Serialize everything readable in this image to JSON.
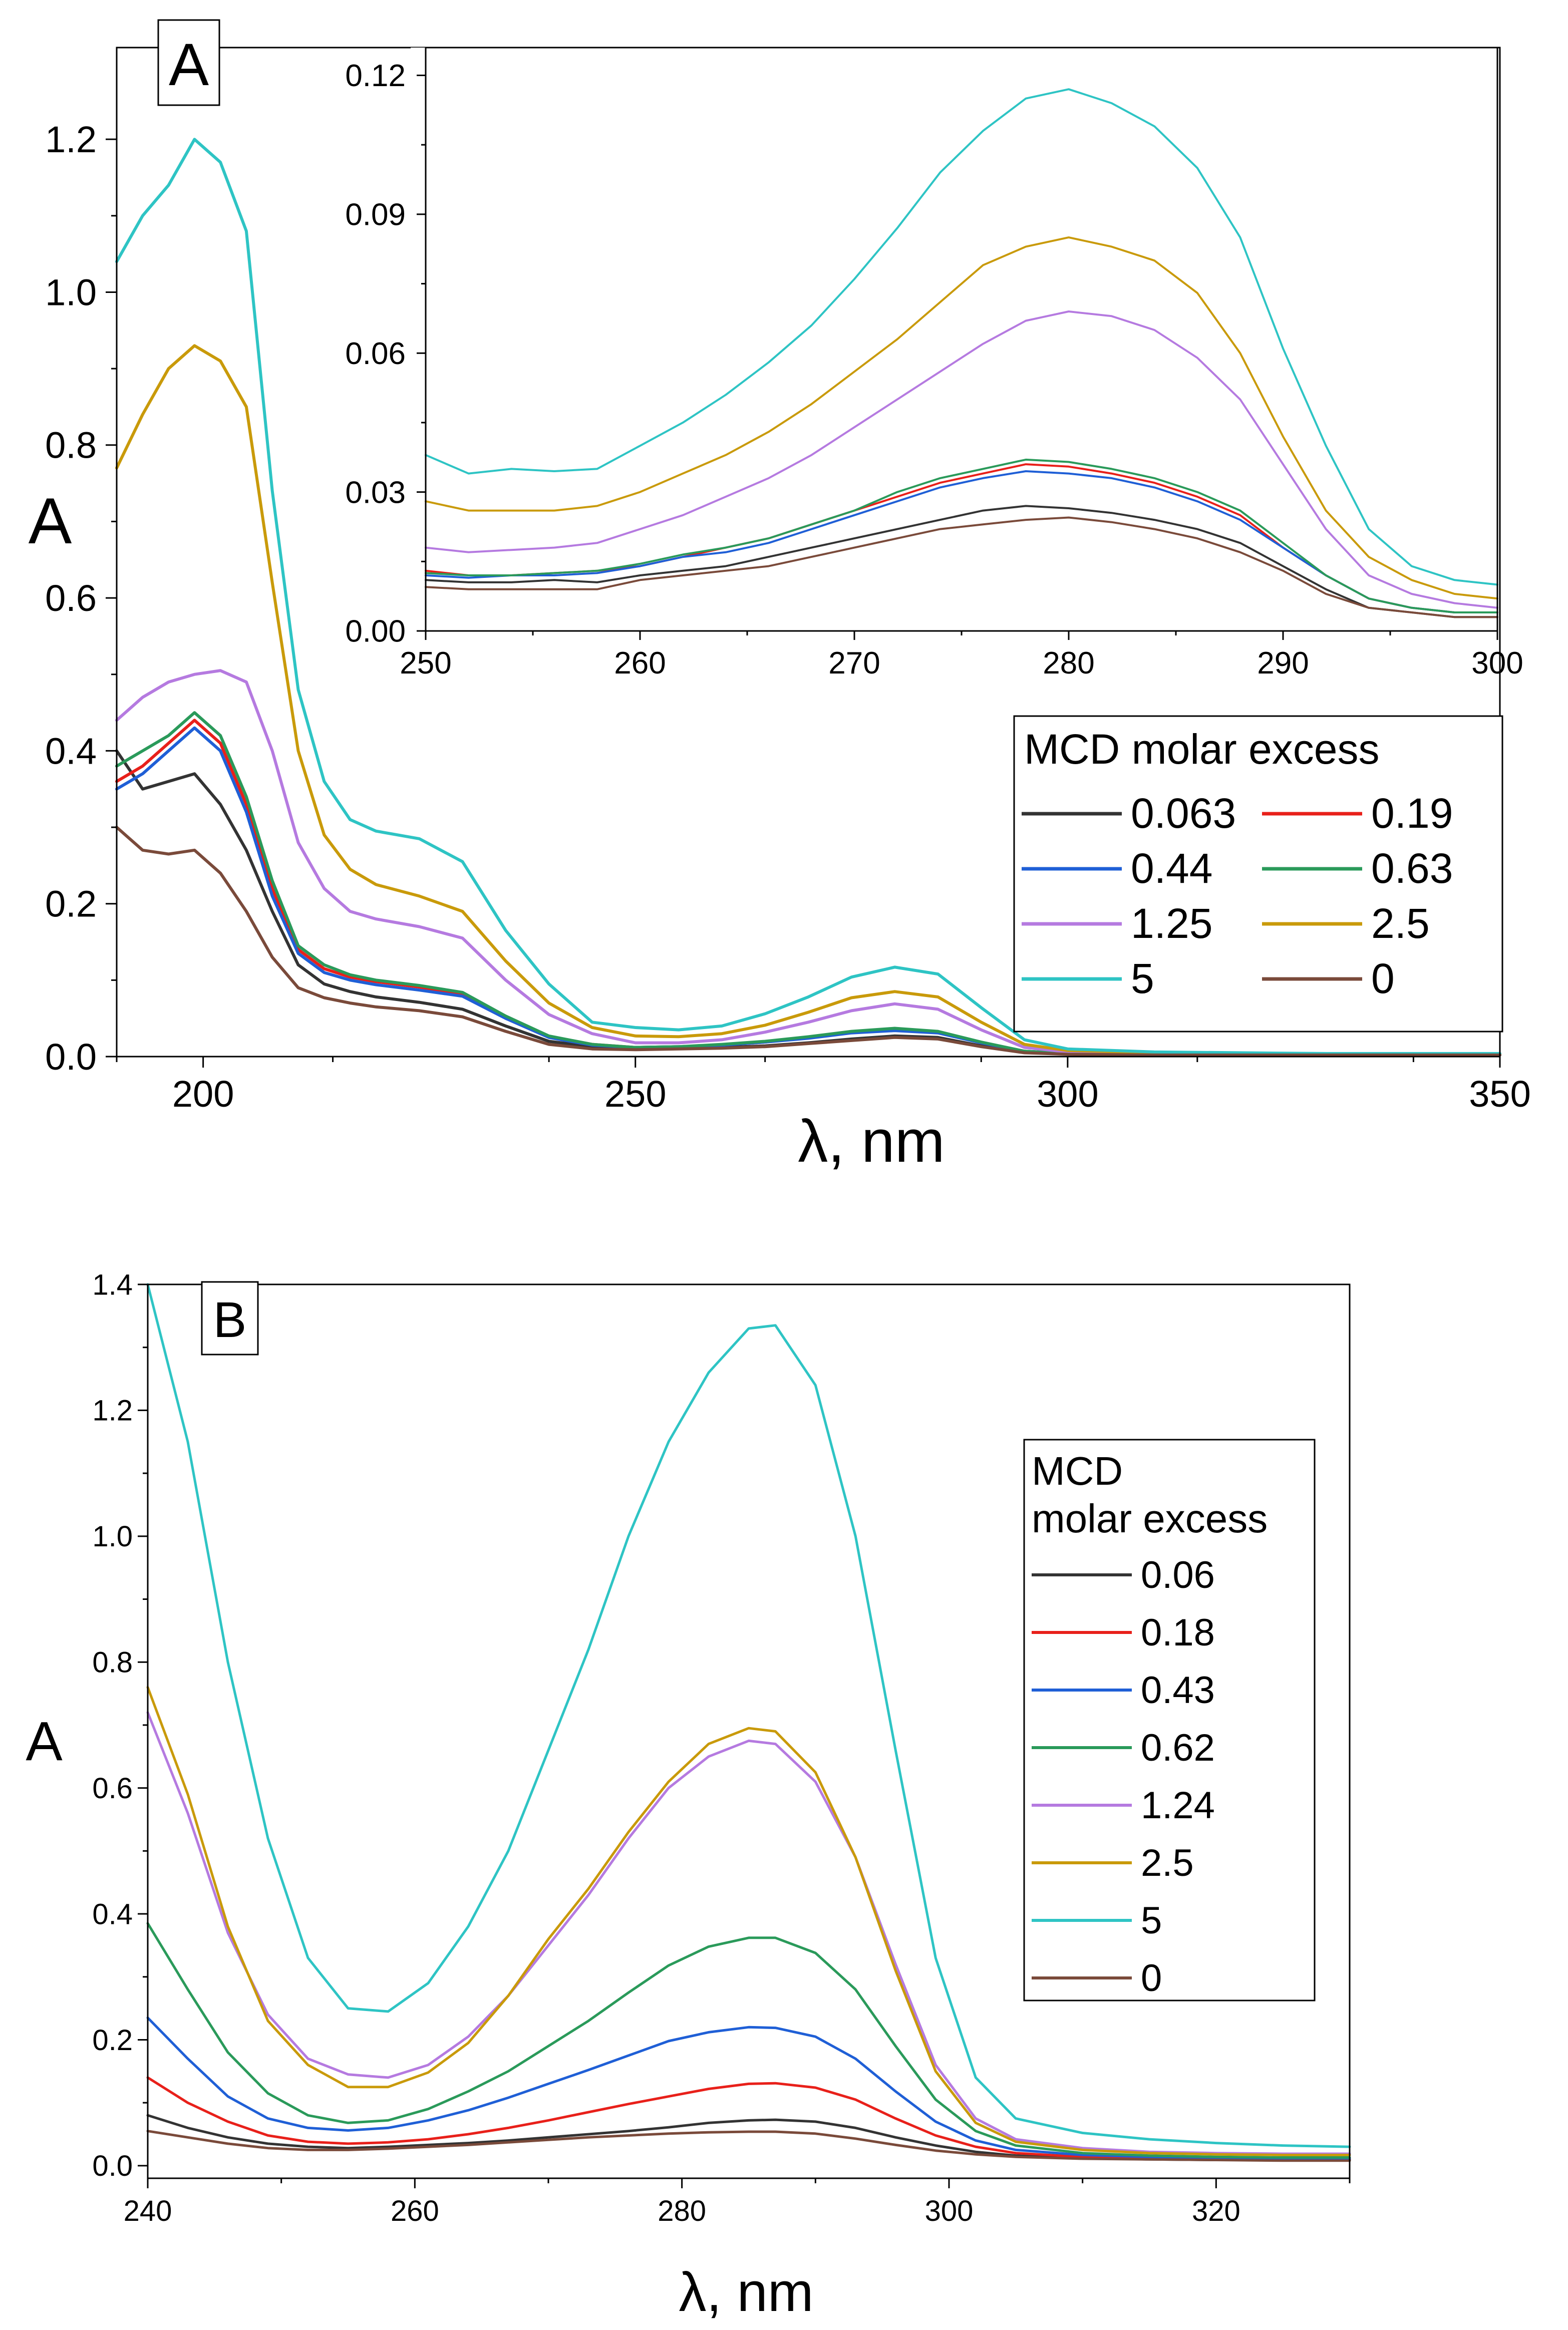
{
  "chart_data": [
    {
      "id": "panel-a-main",
      "type": "line",
      "panel_label": "A",
      "xlabel": "λ, nm",
      "ylabel": "A",
      "xlim": [
        190,
        350
      ],
      "ylim": [
        0,
        1.32
      ],
      "xticks": [
        200,
        250,
        300,
        350
      ],
      "yticks": [
        0.0,
        0.2,
        0.4,
        0.6,
        0.8,
        1.0,
        1.2
      ],
      "ytick_labels": [
        "0.0",
        "0.2",
        "0.4",
        "0.6",
        "0.8",
        "1.0",
        "1.2"
      ],
      "legend_title": "MCD molar excess",
      "x": [
        190,
        193,
        196,
        199,
        202,
        205,
        208,
        211,
        214,
        217,
        220,
        225,
        230,
        235,
        240,
        245,
        250,
        255,
        260,
        265,
        270,
        275,
        280,
        285,
        290,
        295,
        300,
        310,
        320,
        330,
        340,
        350
      ],
      "series": [
        {
          "name": "0.063",
          "color": "#333333",
          "values": [
            0.4,
            0.35,
            0.36,
            0.37,
            0.33,
            0.27,
            0.19,
            0.12,
            0.095,
            0.085,
            0.078,
            0.071,
            0.062,
            0.04,
            0.02,
            0.013,
            0.011,
            0.011,
            0.012,
            0.014,
            0.018,
            0.023,
            0.027,
            0.025,
            0.014,
            0.006,
            0.004,
            0.003,
            0.002,
            0.002,
            0.002,
            0.002
          ]
        },
        {
          "name": "0.19",
          "color": "#e8201a",
          "values": [
            0.36,
            0.38,
            0.41,
            0.44,
            0.41,
            0.33,
            0.22,
            0.14,
            0.115,
            0.104,
            0.098,
            0.091,
            0.082,
            0.052,
            0.026,
            0.016,
            0.012,
            0.013,
            0.015,
            0.019,
            0.025,
            0.032,
            0.036,
            0.032,
            0.018,
            0.007,
            0.004,
            0.003,
            0.002,
            0.002,
            0.002,
            0.002
          ]
        },
        {
          "name": "0.44",
          "color": "#1f5fd6",
          "values": [
            0.35,
            0.37,
            0.4,
            0.43,
            0.4,
            0.32,
            0.21,
            0.135,
            0.11,
            0.1,
            0.094,
            0.087,
            0.079,
            0.05,
            0.025,
            0.015,
            0.012,
            0.013,
            0.015,
            0.019,
            0.024,
            0.031,
            0.034,
            0.031,
            0.018,
            0.007,
            0.004,
            0.003,
            0.002,
            0.002,
            0.002,
            0.002
          ]
        },
        {
          "name": "0.63",
          "color": "#2a9a5a",
          "values": [
            0.38,
            0.4,
            0.42,
            0.45,
            0.42,
            0.34,
            0.23,
            0.145,
            0.12,
            0.107,
            0.1,
            0.093,
            0.084,
            0.053,
            0.027,
            0.016,
            0.012,
            0.013,
            0.016,
            0.02,
            0.026,
            0.033,
            0.037,
            0.033,
            0.019,
            0.007,
            0.004,
            0.003,
            0.002,
            0.002,
            0.002,
            0.002
          ]
        },
        {
          "name": "1.25",
          "color": "#b57ae0",
          "values": [
            0.44,
            0.47,
            0.49,
            0.5,
            0.505,
            0.49,
            0.4,
            0.28,
            0.22,
            0.19,
            0.18,
            0.17,
            0.155,
            0.1,
            0.055,
            0.03,
            0.018,
            0.018,
            0.022,
            0.032,
            0.045,
            0.06,
            0.069,
            0.062,
            0.035,
            0.012,
            0.006,
            0.004,
            0.003,
            0.002,
            0.002,
            0.002
          ]
        },
        {
          "name": "2.5",
          "color": "#c99a0a",
          "values": [
            0.77,
            0.84,
            0.9,
            0.93,
            0.91,
            0.85,
            0.62,
            0.4,
            0.29,
            0.245,
            0.225,
            0.21,
            0.19,
            0.125,
            0.07,
            0.038,
            0.027,
            0.026,
            0.03,
            0.041,
            0.058,
            0.077,
            0.085,
            0.078,
            0.045,
            0.016,
            0.008,
            0.005,
            0.004,
            0.003,
            0.003,
            0.003
          ]
        },
        {
          "name": "5",
          "color": "#2ec4c4",
          "values": [
            1.04,
            1.1,
            1.14,
            1.2,
            1.17,
            1.08,
            0.74,
            0.48,
            0.36,
            0.31,
            0.295,
            0.285,
            0.255,
            0.165,
            0.095,
            0.045,
            0.038,
            0.035,
            0.04,
            0.056,
            0.078,
            0.104,
            0.117,
            0.108,
            0.064,
            0.022,
            0.01,
            0.006,
            0.005,
            0.004,
            0.004,
            0.004
          ]
        },
        {
          "name": "0",
          "color": "#7a4a3a",
          "values": [
            0.3,
            0.27,
            0.265,
            0.27,
            0.24,
            0.19,
            0.13,
            0.09,
            0.077,
            0.07,
            0.065,
            0.06,
            0.052,
            0.033,
            0.016,
            0.01,
            0.009,
            0.01,
            0.011,
            0.013,
            0.017,
            0.021,
            0.025,
            0.023,
            0.013,
            0.005,
            0.003,
            0.002,
            0.002,
            0.002,
            0.002,
            0.002
          ]
        }
      ]
    },
    {
      "id": "panel-a-inset",
      "type": "line",
      "xlabel": "",
      "ylabel": "",
      "xlim": [
        250,
        300
      ],
      "ylim": [
        0,
        0.126
      ],
      "xticks": [
        250,
        260,
        270,
        280,
        290,
        300
      ],
      "yticks": [
        0.0,
        0.03,
        0.06,
        0.09,
        0.12
      ],
      "ytick_labels": [
        "0.00",
        "0.03",
        "0.06",
        "0.09",
        "0.12"
      ],
      "x": [
        250,
        252,
        254,
        256,
        258,
        260,
        262,
        264,
        266,
        268,
        270,
        272,
        274,
        276,
        278,
        280,
        282,
        284,
        286,
        288,
        290,
        292,
        294,
        296,
        298,
        300
      ],
      "series": [
        {
          "name": "0.063",
          "color": "#333333",
          "values": [
            0.011,
            0.0105,
            0.0105,
            0.011,
            0.0105,
            0.012,
            0.013,
            0.014,
            0.016,
            0.018,
            0.02,
            0.022,
            0.024,
            0.026,
            0.027,
            0.0265,
            0.0255,
            0.024,
            0.022,
            0.019,
            0.014,
            0.009,
            0.005,
            0.004,
            0.003,
            0.003
          ]
        },
        {
          "name": "0.19",
          "color": "#e8201a",
          "values": [
            0.013,
            0.012,
            0.012,
            0.0125,
            0.013,
            0.014,
            0.016,
            0.018,
            0.02,
            0.023,
            0.026,
            0.029,
            0.032,
            0.034,
            0.036,
            0.0355,
            0.034,
            0.032,
            0.029,
            0.025,
            0.018,
            0.012,
            0.007,
            0.005,
            0.004,
            0.004
          ]
        },
        {
          "name": "0.44",
          "color": "#1f5fd6",
          "values": [
            0.012,
            0.0115,
            0.012,
            0.012,
            0.0125,
            0.014,
            0.016,
            0.017,
            0.019,
            0.022,
            0.025,
            0.028,
            0.031,
            0.033,
            0.0345,
            0.034,
            0.033,
            0.031,
            0.028,
            0.024,
            0.018,
            0.012,
            0.007,
            0.005,
            0.004,
            0.004
          ]
        },
        {
          "name": "0.63",
          "color": "#2a9a5a",
          "values": [
            0.0125,
            0.012,
            0.012,
            0.0125,
            0.013,
            0.0145,
            0.0165,
            0.018,
            0.02,
            0.023,
            0.026,
            0.03,
            0.033,
            0.035,
            0.037,
            0.0365,
            0.035,
            0.033,
            0.03,
            0.026,
            0.019,
            0.012,
            0.007,
            0.005,
            0.004,
            0.004
          ]
        },
        {
          "name": "1.25",
          "color": "#b57ae0",
          "values": [
            0.018,
            0.017,
            0.0175,
            0.018,
            0.019,
            0.022,
            0.025,
            0.029,
            0.033,
            0.038,
            0.044,
            0.05,
            0.056,
            0.062,
            0.067,
            0.069,
            0.068,
            0.065,
            0.059,
            0.05,
            0.036,
            0.022,
            0.012,
            0.008,
            0.006,
            0.005
          ]
        },
        {
          "name": "2.5",
          "color": "#c99a0a",
          "values": [
            0.028,
            0.026,
            0.026,
            0.026,
            0.027,
            0.03,
            0.034,
            0.038,
            0.043,
            0.049,
            0.056,
            0.063,
            0.071,
            0.079,
            0.083,
            0.085,
            0.083,
            0.08,
            0.073,
            0.06,
            0.042,
            0.026,
            0.016,
            0.011,
            0.008,
            0.007
          ]
        },
        {
          "name": "5",
          "color": "#2ec4c4",
          "values": [
            0.038,
            0.034,
            0.035,
            0.0345,
            0.035,
            0.04,
            0.045,
            0.051,
            0.058,
            0.066,
            0.076,
            0.087,
            0.099,
            0.108,
            0.115,
            0.117,
            0.114,
            0.109,
            0.1,
            0.085,
            0.061,
            0.04,
            0.022,
            0.014,
            0.011,
            0.01
          ]
        },
        {
          "name": "0",
          "color": "#7a4a3a",
          "values": [
            0.0095,
            0.009,
            0.009,
            0.009,
            0.009,
            0.011,
            0.012,
            0.013,
            0.014,
            0.016,
            0.018,
            0.02,
            0.022,
            0.023,
            0.024,
            0.0245,
            0.0235,
            0.022,
            0.02,
            0.017,
            0.013,
            0.008,
            0.005,
            0.004,
            0.003,
            0.003
          ]
        }
      ]
    },
    {
      "id": "panel-b",
      "type": "line",
      "panel_label": "B",
      "xlabel": "λ, nm",
      "ylabel": "A",
      "xlim": [
        240,
        330
      ],
      "ylim": [
        -0.02,
        1.4
      ],
      "xticks": [
        240,
        260,
        280,
        300,
        320
      ],
      "yticks": [
        0.0,
        0.2,
        0.4,
        0.6,
        0.8,
        1.0,
        1.2,
        1.4
      ],
      "ytick_labels": [
        "0.0",
        "0.2",
        "0.4",
        "0.6",
        "0.8",
        "1.0",
        "1.2",
        "1.4"
      ],
      "legend_title_lines": [
        "MCD",
        "molar excess"
      ],
      "x": [
        240,
        243,
        246,
        249,
        252,
        255,
        258,
        261,
        264,
        267,
        270,
        273,
        276,
        279,
        282,
        285,
        287,
        290,
        293,
        296,
        299,
        302,
        305,
        310,
        315,
        320,
        325,
        330
      ],
      "series": [
        {
          "name": "0.06",
          "color": "#333333",
          "values": [
            0.08,
            0.06,
            0.045,
            0.035,
            0.03,
            0.028,
            0.03,
            0.033,
            0.036,
            0.04,
            0.045,
            0.05,
            0.055,
            0.061,
            0.068,
            0.072,
            0.073,
            0.07,
            0.06,
            0.045,
            0.032,
            0.022,
            0.016,
            0.012,
            0.01,
            0.009,
            0.009,
            0.009
          ]
        },
        {
          "name": "0.18",
          "color": "#e8201a",
          "values": [
            0.14,
            0.1,
            0.07,
            0.048,
            0.038,
            0.035,
            0.037,
            0.042,
            0.05,
            0.06,
            0.072,
            0.085,
            0.098,
            0.11,
            0.122,
            0.13,
            0.131,
            0.124,
            0.105,
            0.075,
            0.048,
            0.03,
            0.02,
            0.014,
            0.012,
            0.011,
            0.01,
            0.01
          ]
        },
        {
          "name": "0.43",
          "color": "#1f5fd6",
          "values": [
            0.235,
            0.17,
            0.11,
            0.075,
            0.06,
            0.056,
            0.06,
            0.072,
            0.088,
            0.108,
            0.13,
            0.152,
            0.175,
            0.198,
            0.212,
            0.22,
            0.219,
            0.205,
            0.17,
            0.118,
            0.07,
            0.04,
            0.025,
            0.017,
            0.014,
            0.012,
            0.011,
            0.011
          ]
        },
        {
          "name": "0.62",
          "color": "#2a9a5a",
          "values": [
            0.385,
            0.28,
            0.18,
            0.115,
            0.08,
            0.068,
            0.072,
            0.09,
            0.118,
            0.15,
            0.19,
            0.23,
            0.275,
            0.318,
            0.348,
            0.362,
            0.362,
            0.338,
            0.28,
            0.19,
            0.105,
            0.055,
            0.032,
            0.02,
            0.016,
            0.014,
            0.013,
            0.013
          ]
        },
        {
          "name": "1.24",
          "color": "#b57ae0",
          "values": [
            0.72,
            0.56,
            0.37,
            0.24,
            0.17,
            0.145,
            0.14,
            0.16,
            0.205,
            0.27,
            0.35,
            0.43,
            0.52,
            0.6,
            0.65,
            0.675,
            0.67,
            0.61,
            0.49,
            0.32,
            0.16,
            0.075,
            0.042,
            0.028,
            0.022,
            0.02,
            0.019,
            0.019
          ]
        },
        {
          "name": "2.5",
          "color": "#c99a0a",
          "values": [
            0.76,
            0.59,
            0.38,
            0.23,
            0.16,
            0.125,
            0.125,
            0.148,
            0.195,
            0.27,
            0.36,
            0.44,
            0.53,
            0.61,
            0.67,
            0.695,
            0.69,
            0.625,
            0.49,
            0.31,
            0.15,
            0.068,
            0.038,
            0.025,
            0.02,
            0.018,
            0.017,
            0.017
          ]
        },
        {
          "name": "5",
          "color": "#2ec4c4",
          "values": [
            1.4,
            1.15,
            0.8,
            0.52,
            0.33,
            0.25,
            0.245,
            0.29,
            0.38,
            0.5,
            0.66,
            0.82,
            1.0,
            1.15,
            1.26,
            1.33,
            1.335,
            1.24,
            1.0,
            0.66,
            0.33,
            0.14,
            0.075,
            0.052,
            0.042,
            0.036,
            0.032,
            0.03
          ]
        },
        {
          "name": "0",
          "color": "#7a4a3a",
          "values": [
            0.055,
            0.045,
            0.035,
            0.028,
            0.025,
            0.025,
            0.027,
            0.03,
            0.033,
            0.037,
            0.041,
            0.045,
            0.048,
            0.051,
            0.053,
            0.054,
            0.054,
            0.051,
            0.043,
            0.033,
            0.024,
            0.018,
            0.014,
            0.011,
            0.01,
            0.009,
            0.008,
            0.008
          ]
        }
      ]
    }
  ]
}
